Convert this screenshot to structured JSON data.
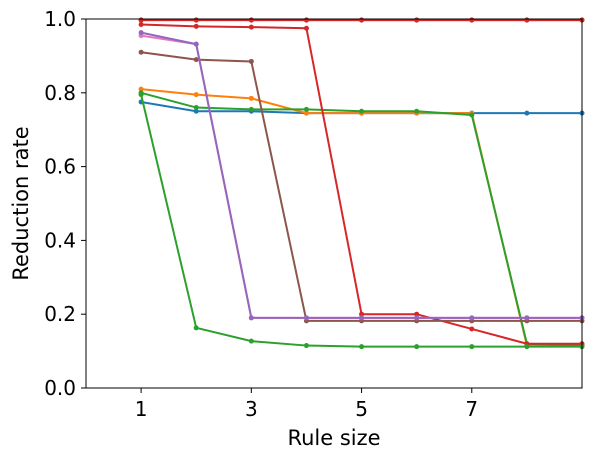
{
  "chart_data": {
    "type": "line",
    "title": "",
    "xlabel": "Rule size",
    "ylabel": "Reduction rate",
    "xlim": [
      0,
      9
    ],
    "ylim": [
      0.0,
      1.0
    ],
    "xticks": [
      1,
      3,
      5,
      7
    ],
    "xtick_labels": [
      "1",
      "3",
      "5",
      "7"
    ],
    "yticks": [
      0.0,
      0.2,
      0.4,
      0.6,
      0.8,
      1.0
    ],
    "ytick_labels": [
      "0.0",
      "0.2",
      "0.4",
      "0.6",
      "0.8",
      "1.0"
    ],
    "grid": false,
    "x": [
      1,
      2,
      3,
      4,
      5,
      6,
      7,
      8,
      9
    ],
    "series": [
      {
        "color": "#1f77b4",
        "values": [
          0.775,
          0.75,
          0.75,
          0.745,
          0.745,
          0.745,
          0.745,
          0.745,
          0.745
        ]
      },
      {
        "color": "#ff7f0e",
        "values": [
          0.81,
          0.795,
          0.785,
          0.745,
          0.745,
          0.745,
          0.745,
          0.115,
          0.115
        ]
      },
      {
        "color": "#2ca02c",
        "values": [
          0.8,
          0.76,
          0.755,
          0.755,
          0.75,
          0.75,
          0.74,
          0.12,
          0.115
        ]
      },
      {
        "color": "#d62728",
        "values": [
          0.985,
          0.98,
          0.978,
          0.975,
          0.2,
          0.2,
          0.16,
          0.12,
          0.12
        ]
      },
      {
        "color": "#8c564b",
        "values": [
          0.91,
          0.89,
          0.885,
          0.182,
          0.182,
          0.182,
          0.182,
          0.182,
          0.182
        ]
      },
      {
        "color": "#e377c2",
        "values": [
          0.955,
          0.932,
          0.19,
          0.19,
          0.19,
          0.19,
          0.19,
          0.19,
          0.19
        ]
      },
      {
        "color": "#9467bd",
        "values": [
          0.963,
          0.932,
          0.19,
          0.19,
          0.19,
          0.19,
          0.19,
          0.19,
          0.19
        ]
      },
      {
        "color": "#2ca02c",
        "values": [
          0.795,
          0.163,
          0.127,
          0.115,
          0.112,
          0.112,
          0.112,
          0.112,
          0.112
        ]
      },
      {
        "color": "#bcbd22",
        "values": [
          0.998,
          0.998,
          0.998,
          0.998,
          0.998,
          0.998,
          0.998,
          0.998,
          0.998
        ]
      },
      {
        "color": "#7f7f7f",
        "values": [
          0.997,
          0.997,
          0.997,
          0.997,
          0.997,
          0.997,
          0.997,
          0.997,
          0.997
        ]
      },
      {
        "color": "#d62728",
        "values": [
          0.997,
          0.997,
          0.997,
          0.997,
          0.997,
          0.997,
          0.997,
          0.997,
          0.997
        ]
      }
    ]
  }
}
